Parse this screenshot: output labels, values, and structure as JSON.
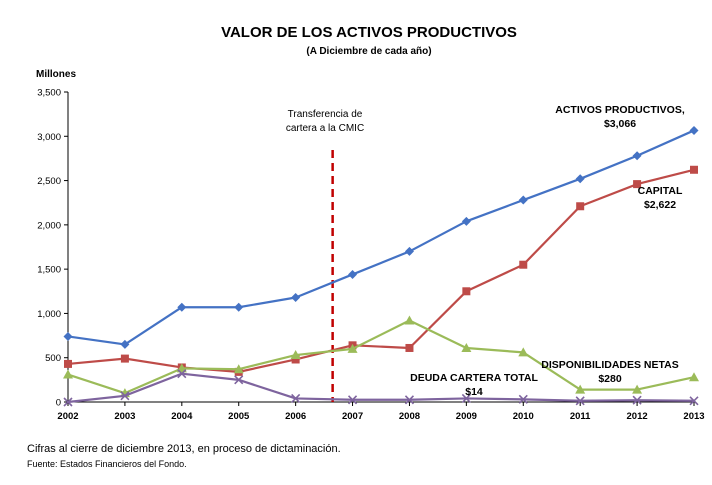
{
  "chart_data": {
    "type": "line",
    "title": "VALOR DE LOS ACTIVOS PRODUCTIVOS",
    "subtitle": "(A Diciembre de cada año)",
    "ylabel": "Millones",
    "ylim": [
      0,
      3500
    ],
    "yticks": [
      "0",
      "500",
      "1,000",
      "1,500",
      "2,000",
      "2,500",
      "3,000",
      "3,500"
    ],
    "categories": [
      "2002",
      "2003",
      "2004",
      "2005",
      "2006",
      "2007",
      "2008",
      "2009",
      "2010",
      "2011",
      "2012",
      "2013"
    ],
    "grid": false,
    "legend": "none",
    "series": [
      {
        "key": "activos",
        "color": "#4472C4",
        "marker": "diamond",
        "label_name": "ACTIVOS PRODUCTIVOS,",
        "label_value": "$3,066",
        "values": [
          740,
          650,
          1070,
          1070,
          1180,
          1440,
          1700,
          2040,
          2280,
          2520,
          2780,
          3066
        ]
      },
      {
        "key": "capital",
        "color": "#BE4B48",
        "marker": "square",
        "label_name": "CAPITAL",
        "label_value": "$2,622",
        "values": [
          430,
          490,
          390,
          340,
          480,
          640,
          610,
          1250,
          1550,
          2210,
          2460,
          2622
        ]
      },
      {
        "key": "disponibilidades",
        "color": "#9BBB59",
        "marker": "triangle",
        "label_name": "DISPONIBILIDADES NETAS",
        "label_value": "$280",
        "values": [
          310,
          100,
          380,
          370,
          530,
          600,
          920,
          610,
          560,
          140,
          140,
          280
        ]
      },
      {
        "key": "deuda",
        "color": "#7E649E",
        "marker": "x",
        "label_name": "DEUDA CARTERA TOTAL",
        "label_value": "$14",
        "values": [
          0,
          70,
          320,
          250,
          40,
          25,
          25,
          40,
          30,
          14,
          20,
          14
        ]
      }
    ],
    "annotation": {
      "text_line1": "Transferencia de",
      "text_line2": "cartera a la CMIC",
      "x_position": 2006.65,
      "color": "#C00000",
      "style": "dashed"
    }
  },
  "footnote": "Cifras al cierre de diciembre 2013, en proceso de dictaminación.",
  "source": "Fuente: Estados Financieros del Fondo."
}
